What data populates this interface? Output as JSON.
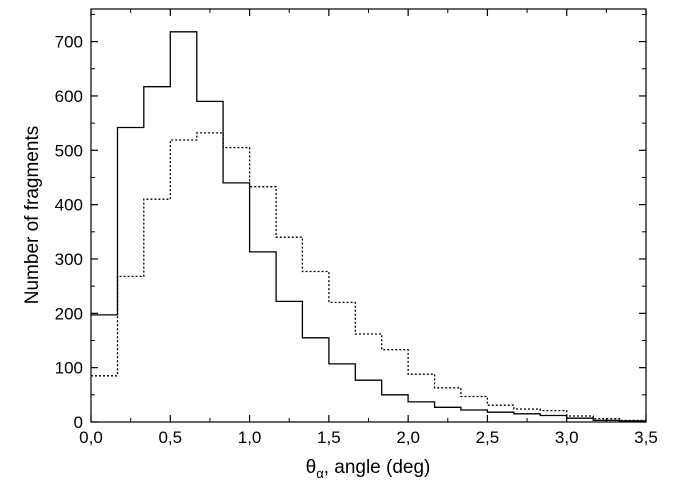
{
  "chart_data": {
    "type": "line",
    "step": "histogram",
    "xlabel": {
      "symbol": "θ",
      "subscript": "α",
      "rest": ", angle (deg)"
    },
    "ylabel": "Number of fragments",
    "xlim": [
      0.0,
      3.5
    ],
    "ylim": [
      0,
      760
    ],
    "x_ticks": [
      0.0,
      0.5,
      1.0,
      1.5,
      2.0,
      2.5,
      3.0,
      3.5
    ],
    "x_tick_labels": [
      "0,0",
      "0,5",
      "1,0",
      "1,5",
      "2,0",
      "2,5",
      "3,0",
      "3,5"
    ],
    "y_ticks": [
      0,
      100,
      200,
      300,
      400,
      500,
      600,
      700
    ],
    "y_tick_labels": [
      "0",
      "100",
      "200",
      "300",
      "400",
      "500",
      "600",
      "700"
    ],
    "grid": false,
    "legend": "none",
    "bin_edges": [
      0.0,
      0.167,
      0.333,
      0.5,
      0.667,
      0.833,
      1.0,
      1.167,
      1.333,
      1.5,
      1.667,
      1.833,
      2.0,
      2.167,
      2.333,
      2.5,
      2.667,
      2.833,
      3.0,
      3.167,
      3.333,
      3.5
    ],
    "series": [
      {
        "line_style": "solid",
        "color": "#000000",
        "values": [
          197,
          542,
          617,
          718,
          590,
          440,
          313,
          222,
          155,
          107,
          77,
          50,
          37,
          27,
          22,
          18,
          15,
          12,
          7,
          3,
          2
        ]
      },
      {
        "line_style": "dotted",
        "color": "#000000",
        "values": [
          85,
          268,
          410,
          519,
          532,
          505,
          433,
          340,
          277,
          220,
          162,
          133,
          88,
          63,
          47,
          31,
          24,
          21,
          11,
          6,
          3
        ]
      }
    ]
  }
}
